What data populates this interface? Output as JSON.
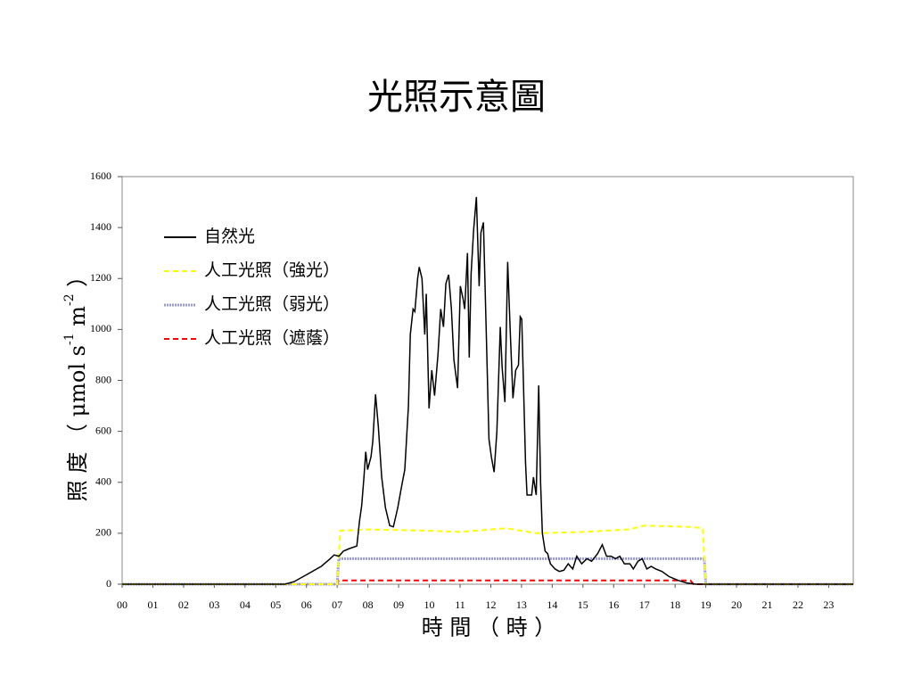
{
  "chart_data": {
    "type": "line",
    "title": "光照示意圖",
    "xlabel": "時 間 （ 時 ）",
    "ylabel": [
      "照 度 （ μmol s",
      "-1",
      " m",
      "-2",
      " ）"
    ],
    "xlim": [
      0,
      23.8
    ],
    "ylim": [
      0,
      1600
    ],
    "yticks": [
      0,
      200,
      400,
      600,
      800,
      1000,
      1200,
      1400,
      1600
    ],
    "xticks": [
      {
        "value": 0,
        "label": "00"
      },
      {
        "value": 1,
        "label": "01"
      },
      {
        "value": 2,
        "label": "02"
      },
      {
        "value": 3,
        "label": "03"
      },
      {
        "value": 4,
        "label": "04"
      },
      {
        "value": 5,
        "label": "05"
      },
      {
        "value": 6,
        "label": "06"
      },
      {
        "value": 7,
        "label": "07"
      },
      {
        "value": 8,
        "label": "08"
      },
      {
        "value": 9,
        "label": "09"
      },
      {
        "value": 10,
        "label": "10"
      },
      {
        "value": 11,
        "label": "11"
      },
      {
        "value": 12,
        "label": "12"
      },
      {
        "value": 13,
        "label": "13"
      },
      {
        "value": 14,
        "label": "14"
      },
      {
        "value": 15,
        "label": "15"
      },
      {
        "value": 16,
        "label": "16"
      },
      {
        "value": 17,
        "label": "17"
      },
      {
        "value": 18,
        "label": "18"
      },
      {
        "value": 19,
        "label": "19"
      },
      {
        "value": 20,
        "label": "20"
      },
      {
        "value": 21,
        "label": "21"
      },
      {
        "value": 22,
        "label": "22"
      },
      {
        "value": 23,
        "label": "23"
      }
    ],
    "legend": "upper-left",
    "series": [
      {
        "name": "自然光",
        "color": "#000000",
        "dash": "solid",
        "x": [
          0,
          5.3,
          5.6,
          6.04,
          6.48,
          6.77,
          6.9,
          7.06,
          7.2,
          7.4,
          7.64,
          7.73,
          7.8,
          7.87,
          7.93,
          7.99,
          8.1,
          8.16,
          8.25,
          8.34,
          8.45,
          8.57,
          8.71,
          8.83,
          8.97,
          9.09,
          9.2,
          9.32,
          9.38,
          9.47,
          9.53,
          9.62,
          9.67,
          9.76,
          9.85,
          9.9,
          9.99,
          10.08,
          10.17,
          10.28,
          10.37,
          10.46,
          10.54,
          10.63,
          10.72,
          10.8,
          10.92,
          11.01,
          11.1,
          11.15,
          11.24,
          11.3,
          11.36,
          11.44,
          11.53,
          11.62,
          11.68,
          11.76,
          11.85,
          11.94,
          12.02,
          12.11,
          12.2,
          12.31,
          12.37,
          12.46,
          12.55,
          12.63,
          12.72,
          12.81,
          12.9,
          12.96,
          13.01,
          13.13,
          13.18,
          13.33,
          13.39,
          13.48,
          13.56,
          13.62,
          13.68,
          13.77,
          13.85,
          13.94,
          14.09,
          14.23,
          14.38,
          14.52,
          14.67,
          14.8,
          14.96,
          15.13,
          15.28,
          15.48,
          15.63,
          15.77,
          15.92,
          16.06,
          16.2,
          16.35,
          16.53,
          16.64,
          16.79,
          16.93,
          17.08,
          17.22,
          17.37,
          17.57,
          17.8,
          18.1,
          18.38,
          18.68,
          23.8
        ],
        "values": [
          0,
          0,
          10,
          40,
          70,
          100,
          115,
          110,
          130,
          140,
          150,
          250,
          310,
          420,
          520,
          450,
          500,
          560,
          745,
          620,
          420,
          300,
          230,
          225,
          300,
          380,
          450,
          700,
          980,
          1080,
          1070,
          1200,
          1245,
          1200,
          980,
          1140,
          690,
          840,
          740,
          900,
          1080,
          1010,
          1180,
          1215,
          1080,
          880,
          770,
          1170,
          1120,
          1080,
          1300,
          890,
          1220,
          1390,
          1520,
          1170,
          1380,
          1420,
          1000,
          570,
          500,
          440,
          600,
          1010,
          850,
          715,
          1265,
          1000,
          730,
          840,
          860,
          1050,
          1040,
          480,
          350,
          350,
          420,
          350,
          780,
          400,
          200,
          130,
          120,
          80,
          60,
          50,
          55,
          80,
          60,
          110,
          80,
          100,
          90,
          120,
          155,
          110,
          110,
          100,
          110,
          80,
          80,
          60,
          90,
          100,
          60,
          70,
          60,
          50,
          30,
          15,
          5,
          0,
          0
        ]
      },
      {
        "name": "人工光照（強光）",
        "color": "#ffff00",
        "dash": "dashed",
        "x": [
          0,
          7.0,
          7.1,
          8,
          10,
          11,
          12.5,
          13.5,
          15,
          16.5,
          17,
          18.5,
          18.9,
          19,
          23.8
        ],
        "values": [
          0,
          0,
          210,
          215,
          210,
          205,
          220,
          200,
          205,
          215,
          230,
          225,
          220,
          0,
          0
        ]
      },
      {
        "name": "人工光照（弱光）",
        "color": "#9999dd",
        "dash": "dotted",
        "x": [
          0,
          7.0,
          7.05,
          18.95,
          19,
          23.8
        ],
        "values": [
          0,
          0,
          100,
          100,
          0,
          0
        ]
      },
      {
        "name": "人工光照（遮蔭）",
        "color": "#ff0000",
        "dash": "dashed",
        "x": [
          0,
          7.0,
          7.05,
          18.5,
          18.6,
          23.8
        ],
        "values": [
          0,
          0,
          15,
          15,
          0,
          0
        ]
      }
    ]
  }
}
